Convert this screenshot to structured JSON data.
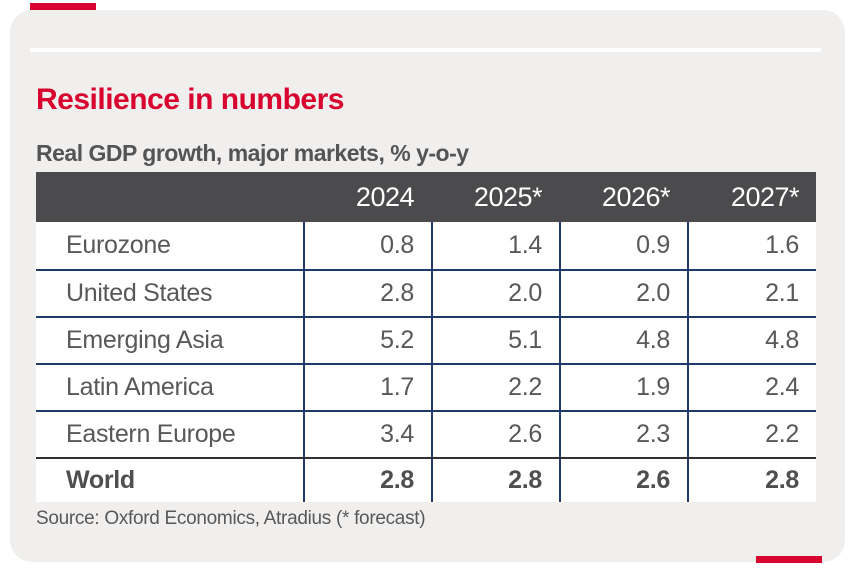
{
  "header": {
    "title": "Resilience in numbers",
    "subtitle": "Real GDP growth, major markets, % y-o-y"
  },
  "table": {
    "col_headers": [
      "2024",
      "2025*",
      "2026*",
      "2027*"
    ],
    "rows": [
      {
        "label": "Eurozone",
        "values": [
          "0.8",
          "1.4",
          "0.9",
          "1.6"
        ]
      },
      {
        "label": "United States",
        "values": [
          "2.8",
          "2.0",
          "2.0",
          "2.1"
        ]
      },
      {
        "label": "Emerging Asia",
        "values": [
          "5.2",
          "5.1",
          "4.8",
          "4.8"
        ]
      },
      {
        "label": "Latin America",
        "values": [
          "1.7",
          "2.2",
          "1.9",
          "2.4"
        ]
      },
      {
        "label": "Eastern Europe",
        "values": [
          "3.4",
          "2.6",
          "2.3",
          "2.2"
        ]
      },
      {
        "label": "World",
        "values": [
          "2.8",
          "2.8",
          "2.6",
          "2.8"
        ]
      }
    ]
  },
  "source": "Source: Oxford Economics, Atradius (* forecast)",
  "colors": {
    "accent_red": "#d8042f",
    "card_background": "#f0efed",
    "table_header_bg": "#4b4b4d",
    "rule_navy": "#1e3a68",
    "rule_dark": "#303030",
    "text_gray": "#58585a"
  },
  "chart_data": {
    "type": "table",
    "title": "Resilience in numbers",
    "subtitle": "Real GDP growth, major markets, % y-o-y",
    "columns": [
      "2024",
      "2025*",
      "2026*",
      "2027*"
    ],
    "rows": [
      {
        "label": "Eurozone",
        "values": [
          0.8,
          1.4,
          0.9,
          1.6
        ]
      },
      {
        "label": "United States",
        "values": [
          2.8,
          2.0,
          2.0,
          2.1
        ]
      },
      {
        "label": "Emerging Asia",
        "values": [
          5.2,
          5.1,
          4.8,
          4.8
        ]
      },
      {
        "label": "Latin America",
        "values": [
          1.7,
          2.2,
          1.9,
          2.4
        ]
      },
      {
        "label": "Eastern Europe",
        "values": [
          3.4,
          2.6,
          2.3,
          2.2
        ]
      },
      {
        "label": "World",
        "values": [
          2.8,
          2.8,
          2.6,
          2.8
        ]
      }
    ],
    "units": "% y-o-y",
    "footnote": "* forecast",
    "source": "Source: Oxford Economics, Atradius (* forecast)"
  }
}
